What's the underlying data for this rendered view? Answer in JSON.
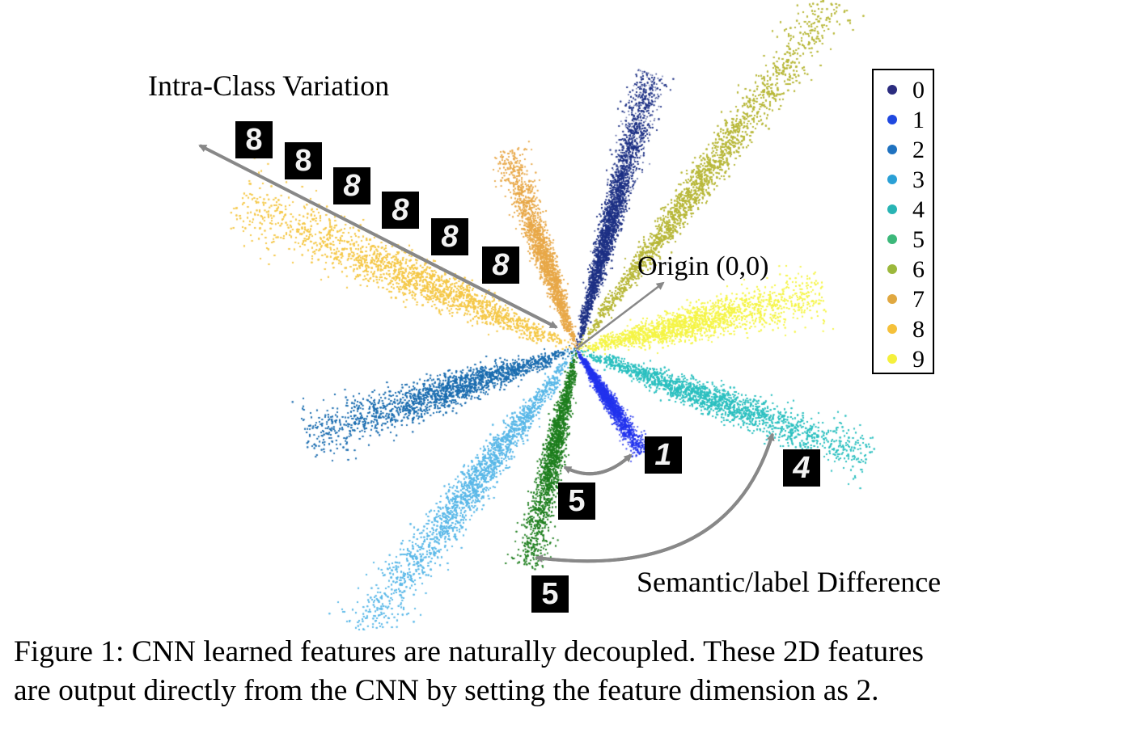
{
  "annotations": {
    "intra_class": "Intra-Class Variation",
    "origin": "Origin (0,0)",
    "semantic": "Semantic/label Difference"
  },
  "digit_tiles": [
    "8",
    "8",
    "8",
    "8",
    "8",
    "8",
    "1",
    "5",
    "4",
    "5"
  ],
  "legend": {
    "items": [
      {
        "label": "0",
        "color": "#2b2c7f"
      },
      {
        "label": "1",
        "color": "#1f48e0"
      },
      {
        "label": "2",
        "color": "#1f72c0"
      },
      {
        "label": "3",
        "color": "#2aa0d6"
      },
      {
        "label": "4",
        "color": "#28b4b4"
      },
      {
        "label": "5",
        "color": "#3cb87a"
      },
      {
        "label": "6",
        "color": "#9cb83c"
      },
      {
        "label": "7",
        "color": "#e0a840"
      },
      {
        "label": "8",
        "color": "#f5c13a"
      },
      {
        "label": "9",
        "color": "#f5f03c"
      }
    ]
  },
  "scatter_colors": {
    "0": "#1e3185",
    "1": "#2233ee",
    "2": "#1b6db0",
    "3": "#5ab8e8",
    "4": "#2cc0c0",
    "5": "#1f7f1f",
    "6": "#b8b83a",
    "7": "#e8a848",
    "8": "#f5c848",
    "9": "#f5f545"
  },
  "arrow_color": "#888888",
  "caption": {
    "line1": "Figure 1: CNN learned features are naturally decoupled. These 2D features",
    "line2": "are output directly from the CNN by setting the feature dimension as 2."
  }
}
